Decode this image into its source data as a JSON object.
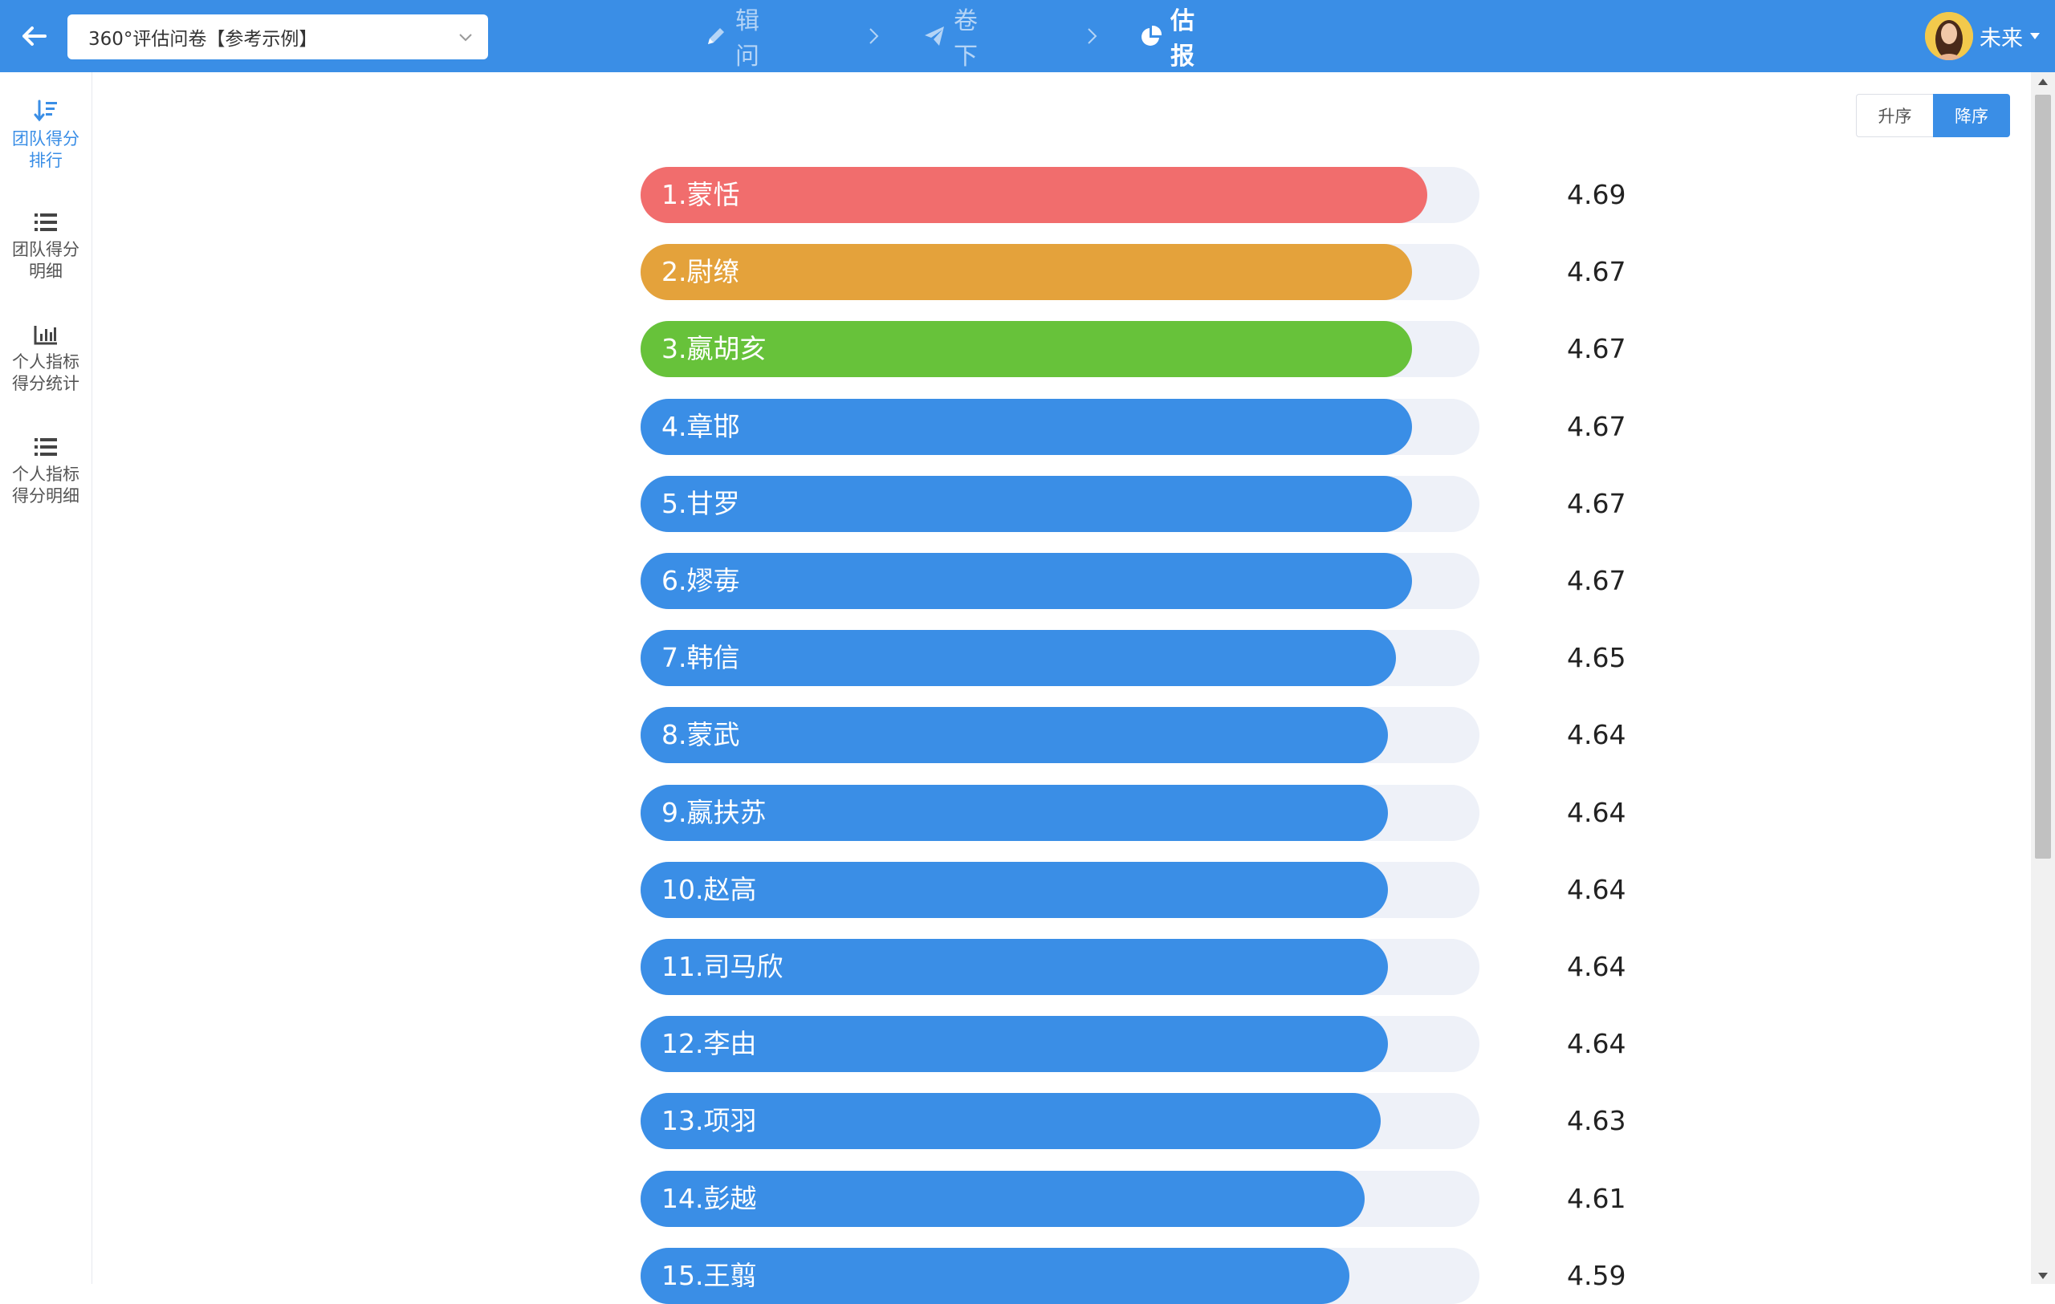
{
  "header": {
    "survey_select": {
      "value": "360°评估问卷【参考示例】"
    },
    "steps": [
      {
        "label": "编辑问卷",
        "icon": "pencil-icon"
      },
      {
        "label": "问卷下发",
        "icon": "paper-plane-icon"
      },
      {
        "label": "评估报告",
        "icon": "pie-chart-icon"
      }
    ],
    "active_step": 2,
    "user": {
      "name": "未来"
    }
  },
  "sidebar": {
    "items": [
      {
        "label": "团队得分排行",
        "icon": "sort-descending-icon",
        "active": true
      },
      {
        "label": "团队得分明细",
        "icon": "list-icon",
        "active": false
      },
      {
        "label": "个人指标得分统计",
        "icon": "bar-chart-icon",
        "active": false
      },
      {
        "label": "个人指标得分明细",
        "icon": "list-icon",
        "active": false
      }
    ]
  },
  "sort": {
    "asc_label": "升序",
    "desc_label": "降序",
    "selected": "desc"
  },
  "colors": {
    "primary": "#3a8ee6",
    "rank1": "#f16d6d",
    "rank2": "#e4a23b",
    "rank3": "#67c23a",
    "track": "#eef1f8"
  },
  "chart_data": {
    "type": "bar",
    "orientation": "horizontal",
    "categories": [
      "1.蒙恬",
      "2.尉缭",
      "3.嬴胡亥",
      "4.章邯",
      "5.甘罗",
      "6.嫪毐",
      "7.韩信",
      "8.蒙武",
      "9.嬴扶苏",
      "10.赵高",
      "11.司马欣",
      "12.李由",
      "13.项羽",
      "14.彭越",
      "15.王翦"
    ],
    "values": [
      4.69,
      4.67,
      4.67,
      4.67,
      4.67,
      4.67,
      4.65,
      4.64,
      4.64,
      4.64,
      4.64,
      4.64,
      4.63,
      4.61,
      4.59
    ],
    "value_labels": [
      "4.69",
      "4.67",
      "4.67",
      "4.67",
      "4.67",
      "4.67",
      "4.65",
      "4.64",
      "4.64",
      "4.64",
      "4.64",
      "4.64",
      "4.63",
      "4.61",
      "4.59"
    ],
    "xlim": [
      0,
      5
    ],
    "sort_order": "descending"
  }
}
